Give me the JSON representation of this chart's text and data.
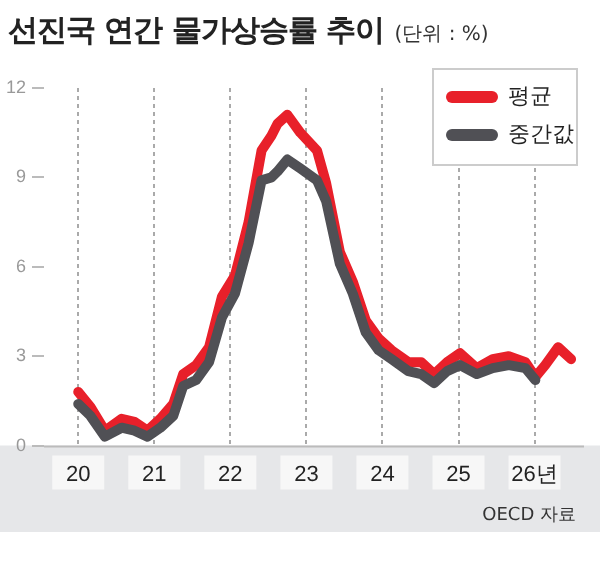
{
  "chart_data": {
    "type": "line",
    "title": "선진국 연간 물가상승률 추이",
    "subtitle": "(단위 : %)",
    "annotations": [
      "OECD 자료"
    ],
    "x": [
      20.0,
      20.16,
      20.35,
      20.57,
      20.74,
      20.91,
      21.08,
      21.25,
      21.38,
      21.55,
      21.72,
      21.89,
      22.06,
      22.24,
      22.41,
      22.54,
      22.62,
      22.75,
      22.92,
      23.14,
      23.26,
      23.44,
      23.61,
      23.78,
      23.95,
      24.12,
      24.34,
      24.51,
      24.68,
      24.85,
      25.02,
      25.24,
      25.45,
      25.66,
      25.88,
      26.01,
      26.14,
      26.31,
      26.48
    ],
    "series": [
      {
        "name": "중간값",
        "color": "#505055",
        "values": [
          1.4,
          1.0,
          0.3,
          0.6,
          0.5,
          0.3,
          0.6,
          1.0,
          2.0,
          2.2,
          2.8,
          4.3,
          5.1,
          6.8,
          8.9,
          9.0,
          9.2,
          9.6,
          9.3,
          8.9,
          8.2,
          6.1,
          5.1,
          3.8,
          3.2,
          2.9,
          2.5,
          2.4,
          2.1,
          2.5,
          2.7,
          2.4,
          2.6,
          2.7,
          2.6,
          2.2,
          null,
          null,
          null
        ]
      },
      {
        "name": "평균",
        "color": "#e8202a",
        "values": [
          1.8,
          1.3,
          0.5,
          0.9,
          0.8,
          0.5,
          0.9,
          1.4,
          2.4,
          2.7,
          3.3,
          5.0,
          5.7,
          7.5,
          9.9,
          10.4,
          10.8,
          11.1,
          10.5,
          9.9,
          8.8,
          6.5,
          5.5,
          4.2,
          3.6,
          3.2,
          2.8,
          2.8,
          2.4,
          2.8,
          3.1,
          2.6,
          2.9,
          3.0,
          2.8,
          2.3,
          2.7,
          3.3,
          2.9
        ]
      }
    ],
    "xlim": [
      19.55,
      26.65
    ],
    "xticks": [
      20,
      21,
      22,
      23,
      24,
      25,
      {
        "value": 26,
        "label": "26년"
      }
    ],
    "ylim": [
      0,
      12
    ],
    "yticks": [
      0,
      3,
      6,
      9,
      12
    ],
    "grid": "x",
    "legend": "top right",
    "marker": "none",
    "line_style": "solid"
  }
}
